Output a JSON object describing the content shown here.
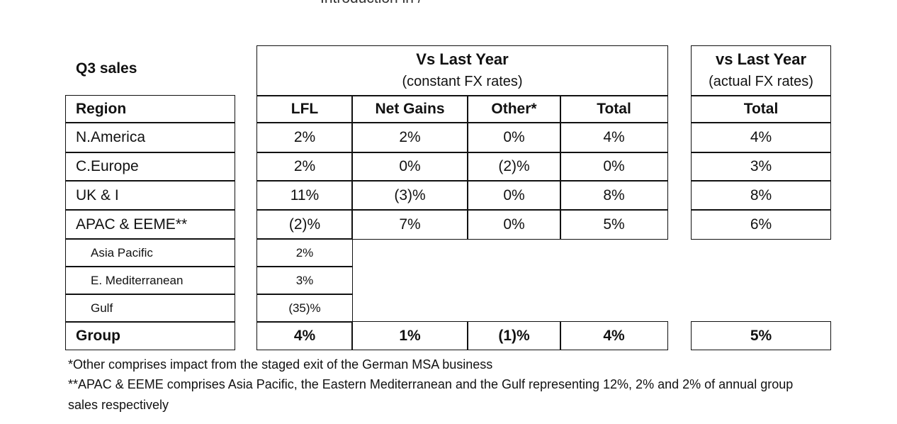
{
  "clipped_top_text": "Introduction in /",
  "title": "Q3 sales",
  "headers": {
    "const_main": "Vs Last Year",
    "const_sub": "(constant FX rates)",
    "actual_main": "vs Last Year",
    "actual_sub": "(actual FX rates)",
    "region": "Region",
    "lfl": "LFL",
    "net_gains": "Net Gains",
    "other": "Other*",
    "total": "Total",
    "actual_total": "Total"
  },
  "rows": [
    {
      "region": "N.America",
      "lfl": "2%",
      "net_gains": "2%",
      "other": "0%",
      "total": "4%",
      "actual": "4%"
    },
    {
      "region": "C.Europe",
      "lfl": "2%",
      "net_gains": "0%",
      "other": "(2)%",
      "total": "0%",
      "actual": "3%"
    },
    {
      "region": "UK & I",
      "lfl": "11%",
      "net_gains": "(3)%",
      "other": "0%",
      "total": "8%",
      "actual": "8%"
    },
    {
      "region": "APAC & EEME**",
      "lfl": "(2)%",
      "net_gains": "7%",
      "other": "0%",
      "total": "5%",
      "actual": "6%"
    }
  ],
  "subrows": [
    {
      "region": "Asia Pacific",
      "lfl": "2%"
    },
    {
      "region": "E. Mediterranean",
      "lfl": "3%"
    },
    {
      "region": "Gulf",
      "lfl": "(35)%"
    }
  ],
  "group": {
    "region": "Group",
    "lfl": "4%",
    "net_gains": "1%",
    "other": "(1)%",
    "total": "4%",
    "actual": "5%"
  },
  "footnotes": {
    "note1": "*Other comprises impact from the staged exit of the German MSA business",
    "note2_line1": "**APAC & EEME comprises Asia Pacific, the Eastern Mediterranean and the Gulf representing 12%, 2% and 2% of annual group",
    "note2_line2": "sales respectively"
  }
}
